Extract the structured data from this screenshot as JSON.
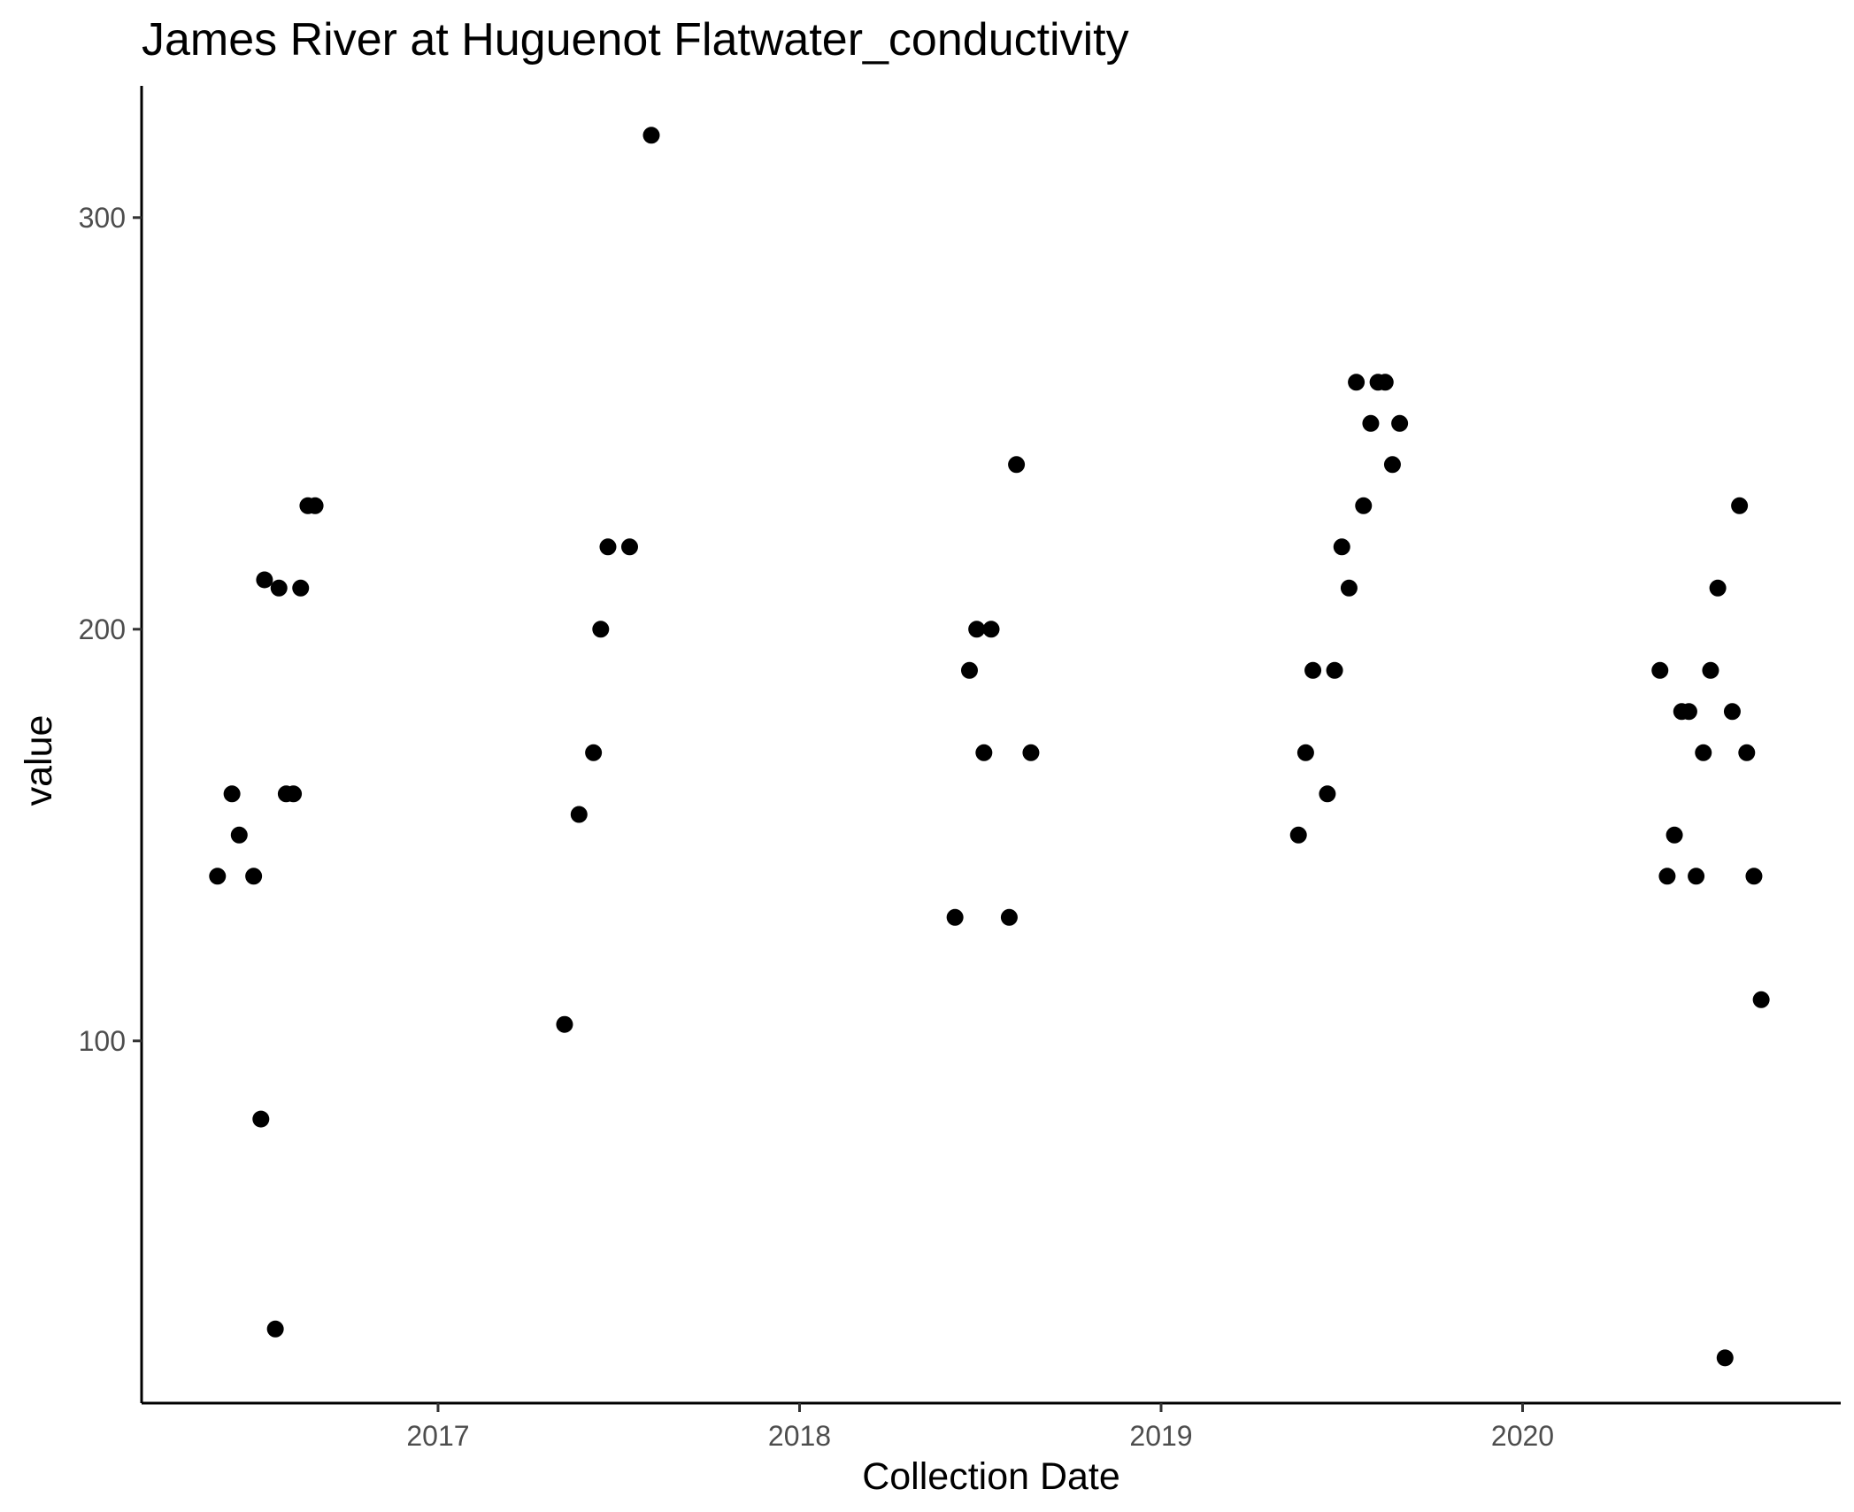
{
  "chart_data": {
    "type": "scatter",
    "title": "James River at Huguenot Flatwater_conductivity",
    "xlabel": "Collection Date",
    "ylabel": "value",
    "x_ticks": [
      2017,
      2018,
      2019,
      2020
    ],
    "y_ticks": [
      100,
      200,
      300
    ],
    "xlim": [
      2016.18,
      2020.88
    ],
    "ylim": [
      12,
      332
    ],
    "grid": false,
    "legend": "none",
    "point_color": "#000000",
    "series": [
      {
        "name": "conductivity",
        "x": [
          2016.39,
          2016.43,
          2016.45,
          2016.49,
          2016.51,
          2016.52,
          2016.55,
          2016.56,
          2016.58,
          2016.6,
          2016.62,
          2016.64,
          2016.66,
          2017.35,
          2017.39,
          2017.43,
          2017.45,
          2017.47,
          2017.53,
          2017.59,
          2018.43,
          2018.47,
          2018.49,
          2018.51,
          2018.53,
          2018.58,
          2018.6,
          2018.64,
          2019.38,
          2019.4,
          2019.42,
          2019.46,
          2019.48,
          2019.5,
          2019.52,
          2019.54,
          2019.56,
          2019.58,
          2019.6,
          2019.62,
          2019.64,
          2019.66,
          2020.38,
          2020.4,
          2020.42,
          2020.44,
          2020.46,
          2020.48,
          2020.5,
          2020.52,
          2020.54,
          2020.56,
          2020.58,
          2020.6,
          2020.62,
          2020.64,
          2020.66
        ],
        "y": [
          140,
          160,
          150,
          140,
          81,
          212,
          30,
          210,
          160,
          160,
          210,
          230,
          230,
          104,
          155,
          170,
          200,
          220,
          220,
          320,
          130,
          190,
          200,
          170,
          200,
          130,
          240,
          170,
          150,
          170,
          190,
          160,
          190,
          220,
          210,
          260,
          230,
          250,
          260,
          260,
          240,
          250,
          190,
          140,
          150,
          180,
          180,
          140,
          170,
          190,
          210,
          23,
          180,
          230,
          170,
          140,
          110
        ]
      }
    ]
  }
}
